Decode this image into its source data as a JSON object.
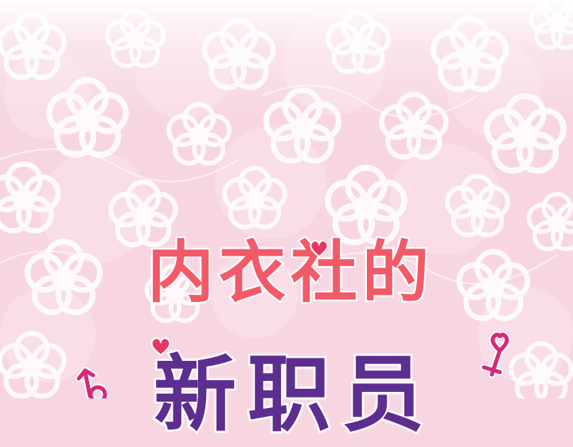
{
  "title": {
    "line1": "内衣社的",
    "line2": "新职员"
  },
  "decorations": {
    "heart_icon": "heart-icon",
    "female_symbol_icon": "female-symbol-icon",
    "male_symbol_icon": "male-symbol-icon"
  },
  "colors": {
    "background": "#f7d6e2",
    "flower_outline": "#ffffff",
    "title_line1": "#f25a68",
    "title_line2": "#5d2d8f",
    "heart": "#e8365f",
    "symbol": "#d8287a"
  }
}
